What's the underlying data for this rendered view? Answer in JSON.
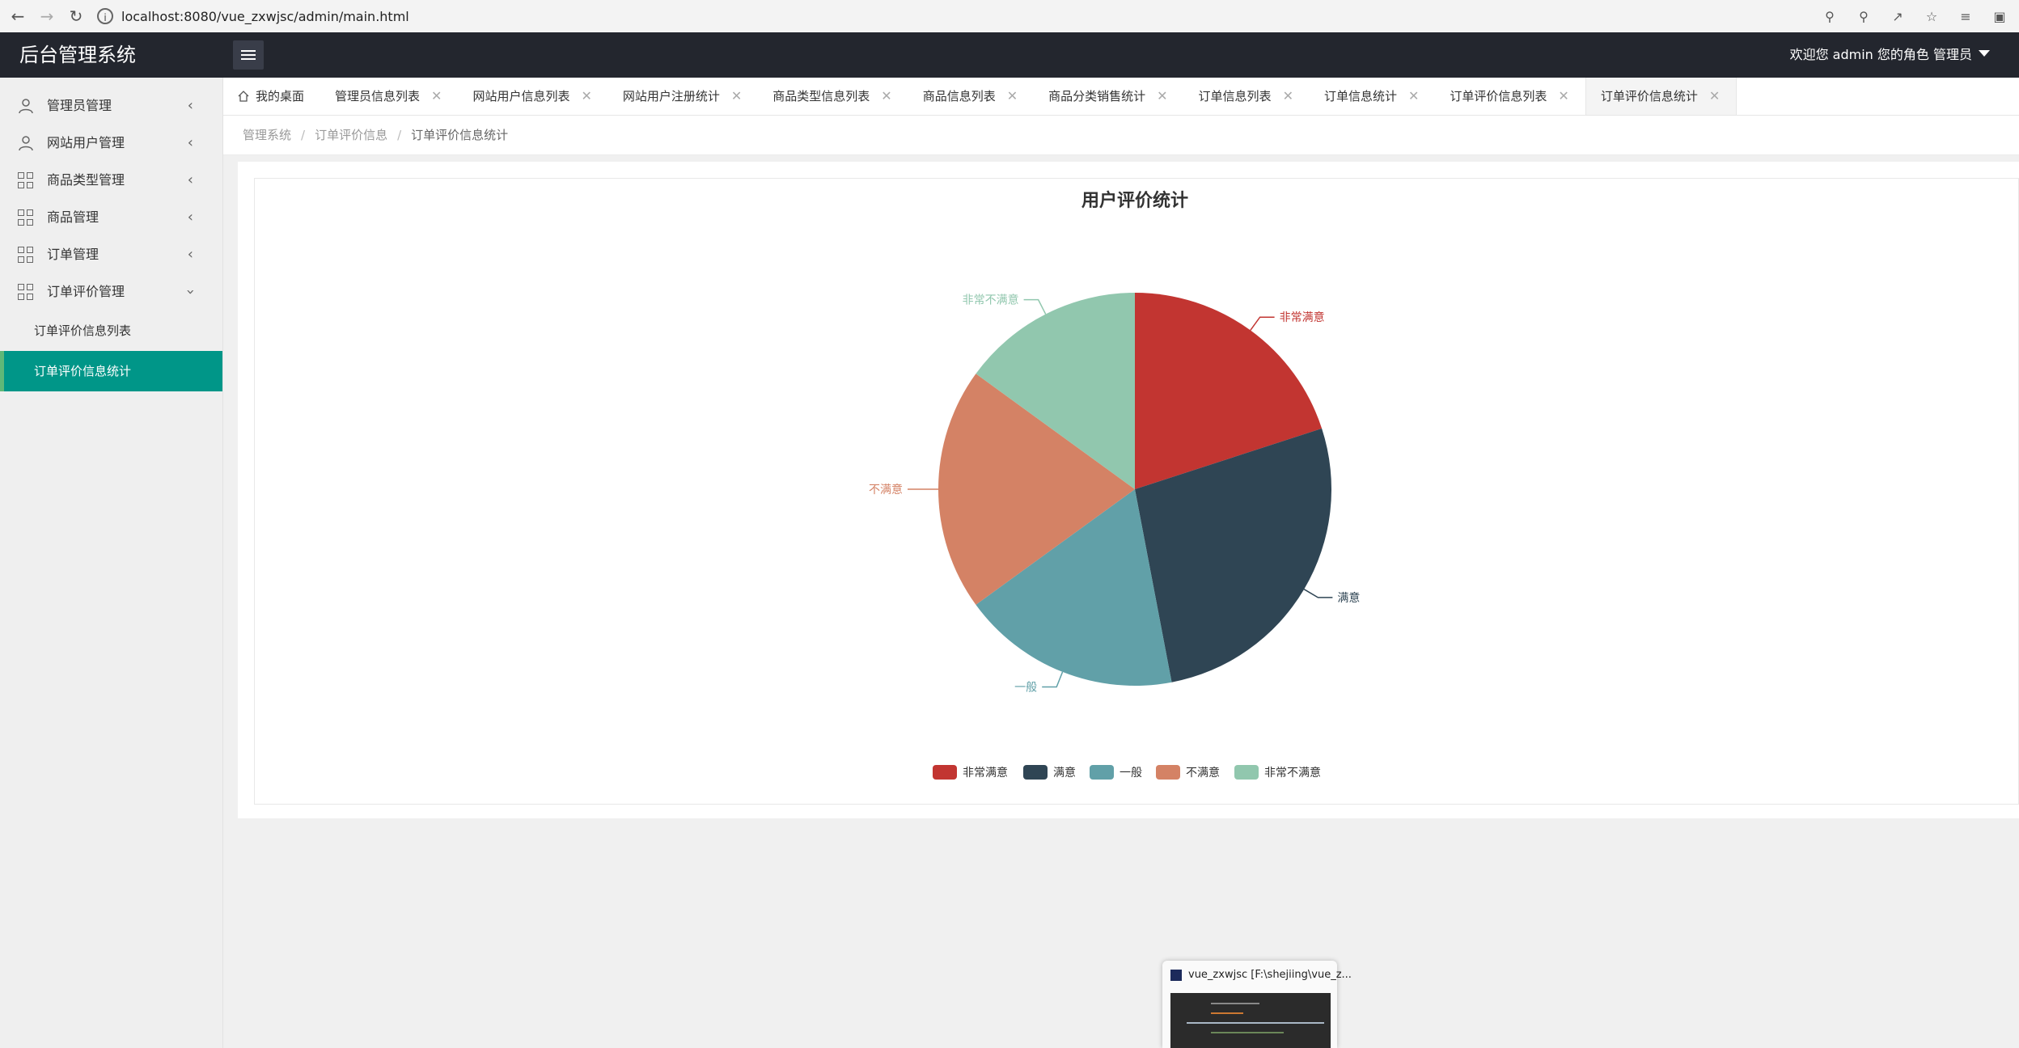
{
  "browser": {
    "url": "localhost:8080/vue_zxwjsc/admin/main.html"
  },
  "header": {
    "brand": "后台管理系统",
    "user_text": "欢迎您 admin 您的角色 管理员"
  },
  "sidebar": {
    "items": [
      {
        "label": "管理员管理",
        "icon": "user-icon",
        "expanded": false
      },
      {
        "label": "网站用户管理",
        "icon": "user-icon",
        "expanded": false
      },
      {
        "label": "商品类型管理",
        "icon": "grid-icon",
        "expanded": false
      },
      {
        "label": "商品管理",
        "icon": "grid-icon",
        "expanded": false
      },
      {
        "label": "订单管理",
        "icon": "grid-icon",
        "expanded": false
      },
      {
        "label": "订单评价管理",
        "icon": "grid-icon",
        "expanded": true
      }
    ],
    "sub_items": [
      {
        "label": "订单评价信息列表",
        "active": false
      },
      {
        "label": "订单评价信息统计",
        "active": true
      }
    ],
    "active_color": "#009688"
  },
  "tabs": [
    {
      "label": "我的桌面",
      "closable": false
    },
    {
      "label": "管理员信息列表",
      "closable": true
    },
    {
      "label": "网站用户信息列表",
      "closable": true
    },
    {
      "label": "网站用户注册统计",
      "closable": true
    },
    {
      "label": "商品类型信息列表",
      "closable": true
    },
    {
      "label": "商品信息列表",
      "closable": true
    },
    {
      "label": "商品分类销售统计",
      "closable": true
    },
    {
      "label": "订单信息列表",
      "closable": true
    },
    {
      "label": "订单信息统计",
      "closable": true
    },
    {
      "label": "订单评价信息列表",
      "closable": true
    },
    {
      "label": "订单评价信息统计",
      "closable": true,
      "active": true
    }
  ],
  "breadcrumb": [
    "管理系统",
    "订单评价信息",
    "订单评价信息统计"
  ],
  "chart_data": {
    "type": "pie",
    "title": "用户评价统计",
    "legend_position": "bottom-center",
    "slices": [
      {
        "name": "非常满意",
        "value": 20,
        "color": "#c23531"
      },
      {
        "name": "满意",
        "value": 27,
        "color": "#2f4554"
      },
      {
        "name": "一般",
        "value": 18,
        "color": "#61a0a8"
      },
      {
        "name": "不满意",
        "value": 20,
        "color": "#d48265"
      },
      {
        "name": "非常不满意",
        "value": 15,
        "color": "#91c7ae"
      }
    ]
  },
  "taskbar_preview": {
    "title": "vue_zxwjsc [F:\\shejiing\\vue_z..."
  }
}
